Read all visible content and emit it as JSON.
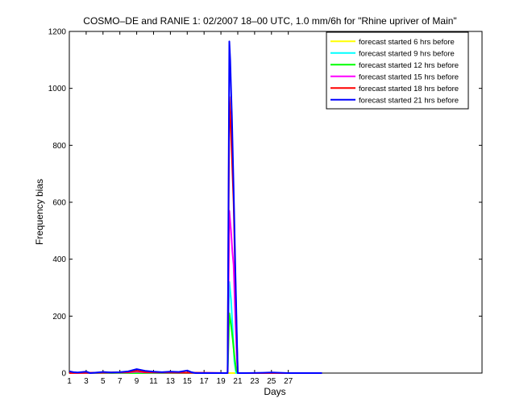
{
  "chart_data": {
    "type": "line",
    "title": "COSMO–DE and RANIE 1: 02/2007 18–00 UTC, 1.0 mm/6h for \"Rhine upriver of Main\"",
    "xlabel": "Days",
    "ylabel": "Frequency bias",
    "xlim": [
      1,
      50
    ],
    "ylim": [
      0,
      1200
    ],
    "xticks": [
      1,
      3,
      5,
      7,
      9,
      11,
      13,
      15,
      17,
      19,
      21,
      23,
      25,
      27
    ],
    "yticks": [
      0,
      200,
      400,
      600,
      800,
      1000,
      1200
    ],
    "grid": false,
    "legend_position": "top-right",
    "series": [
      {
        "name": "forecast started 6 hrs before",
        "color": "#ffff00",
        "points": [
          [
            1,
            0
          ],
          [
            5,
            0
          ],
          [
            10,
            0
          ],
          [
            15,
            0
          ],
          [
            20,
            0
          ],
          [
            21,
            0
          ],
          [
            25,
            0
          ],
          [
            31,
            0
          ]
        ]
      },
      {
        "name": "forecast started 9 hrs before",
        "color": "#00ffff",
        "points": [
          [
            1,
            0
          ],
          [
            9,
            0
          ],
          [
            19.8,
            0
          ],
          [
            20,
            320
          ],
          [
            20.2,
            260
          ],
          [
            20.4,
            150
          ],
          [
            20.6,
            40
          ],
          [
            20.8,
            0
          ],
          [
            31,
            0
          ]
        ]
      },
      {
        "name": "forecast started 12 hrs before",
        "color": "#00ff00",
        "points": [
          [
            1,
            0
          ],
          [
            9,
            0
          ],
          [
            19.8,
            0
          ],
          [
            20,
            210
          ],
          [
            20.2,
            170
          ],
          [
            20.4,
            120
          ],
          [
            20.6,
            60
          ],
          [
            20.8,
            10
          ],
          [
            21,
            0
          ],
          [
            31,
            0
          ]
        ]
      },
      {
        "name": "forecast started 15 hrs before",
        "color": "#ff00ff",
        "points": [
          [
            1,
            0
          ],
          [
            8,
            2
          ],
          [
            9,
            5
          ],
          [
            10,
            2
          ],
          [
            19.8,
            0
          ],
          [
            20,
            570
          ],
          [
            20.2,
            500
          ],
          [
            20.35,
            430
          ],
          [
            20.5,
            380
          ],
          [
            20.7,
            200
          ],
          [
            20.9,
            50
          ],
          [
            21,
            0
          ],
          [
            31,
            0
          ]
        ]
      },
      {
        "name": "forecast started 18 hrs before",
        "color": "#ff0000",
        "points": [
          [
            1,
            0
          ],
          [
            8,
            3
          ],
          [
            9,
            8
          ],
          [
            10,
            3
          ],
          [
            19.8,
            0
          ],
          [
            20,
            970
          ],
          [
            20.15,
            880
          ],
          [
            20.3,
            760
          ],
          [
            20.5,
            600
          ],
          [
            20.7,
            350
          ],
          [
            20.9,
            100
          ],
          [
            21,
            0
          ],
          [
            31,
            0
          ]
        ]
      },
      {
        "name": "forecast started 21 hrs before",
        "color": "#0000ff",
        "points": [
          [
            1,
            6
          ],
          [
            1.5,
            3
          ],
          [
            2,
            2
          ],
          [
            3,
            5
          ],
          [
            3.5,
            0
          ],
          [
            5,
            4
          ],
          [
            6,
            2
          ],
          [
            7,
            3
          ],
          [
            8,
            6
          ],
          [
            9,
            14
          ],
          [
            10,
            8
          ],
          [
            11,
            5
          ],
          [
            12,
            3
          ],
          [
            13,
            5
          ],
          [
            14,
            4
          ],
          [
            15,
            9
          ],
          [
            15.5,
            3
          ],
          [
            16,
            0
          ],
          [
            19.8,
            0
          ],
          [
            20,
            1165
          ],
          [
            20.1,
            1100
          ],
          [
            20.2,
            1000
          ],
          [
            20.3,
            900
          ],
          [
            20.4,
            780
          ],
          [
            20.5,
            650
          ],
          [
            20.6,
            520
          ],
          [
            20.7,
            380
          ],
          [
            20.8,
            250
          ],
          [
            20.9,
            120
          ],
          [
            21,
            0
          ],
          [
            22,
            0
          ],
          [
            24,
            1
          ],
          [
            25,
            2
          ],
          [
            26,
            1
          ],
          [
            27,
            0
          ],
          [
            31,
            0
          ]
        ]
      }
    ]
  }
}
